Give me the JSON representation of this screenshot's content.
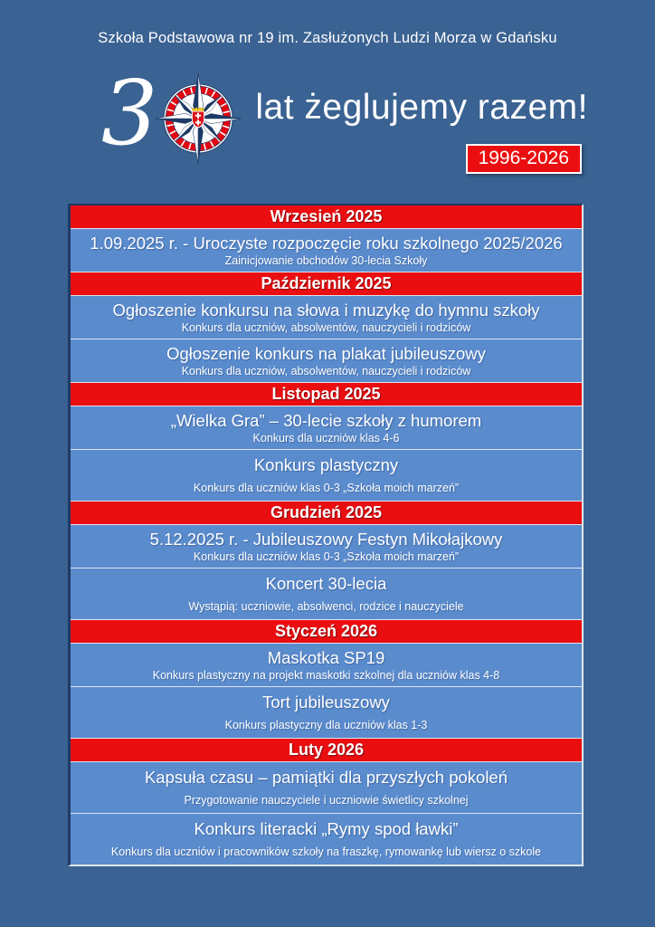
{
  "header": {
    "school_name": "Szkoła Podstawowa nr 19 im. Zasłużonych Ludzi Morza w Gdańsku",
    "anniversary_digit": "3",
    "slogan": "lat żeglujemy razem!",
    "years": "1996-2026"
  },
  "colors": {
    "page_bg": "#3A6292",
    "month_red": "#EA0E11",
    "row_blue": "#5A8BCD",
    "border_navy": "#1E3A66",
    "separator": "#DFE6F0"
  },
  "icons": {
    "compass_rose": "compass-rose-icon"
  },
  "schedule": [
    {
      "type": "month",
      "label": "Wrzesień 2025"
    },
    {
      "type": "event",
      "title": "1.09.2025 r. - Uroczyste rozpoczęcie roku szkolnego 2025/2026",
      "subtitle": "Zainicjowanie obchodów 30-lecia Szkoły",
      "spaced": false
    },
    {
      "type": "month",
      "label": "Październik 2025"
    },
    {
      "type": "event",
      "title": "Ogłoszenie konkursu na słowa i muzykę do hymnu szkoły",
      "subtitle": "Konkurs dla uczniów, absolwentów, nauczycieli i rodziców",
      "spaced": false
    },
    {
      "type": "event",
      "title": "Ogłoszenie konkurs na plakat jubileuszowy",
      "subtitle": "Konkurs dla uczniów, absolwentów, nauczycieli i rodziców",
      "spaced": false
    },
    {
      "type": "month",
      "label": "Listopad 2025"
    },
    {
      "type": "event",
      "title": "„Wielka Gra” – 30-lecie szkoły z humorem",
      "subtitle": "Konkurs dla uczniów klas 4-6",
      "spaced": false
    },
    {
      "type": "event",
      "title": "Konkurs plastyczny",
      "subtitle": "Konkurs dla uczniów klas 0-3 „Szkoła moich marzeń”",
      "spaced": true
    },
    {
      "type": "month",
      "label": "Grudzień 2025"
    },
    {
      "type": "event",
      "title": "5.12.2025 r. - Jubileuszowy Festyn Mikołajkowy",
      "subtitle": "Konkurs dla uczniów klas 0-3 „Szkoła moich marzeń”",
      "spaced": false
    },
    {
      "type": "event",
      "title": "Koncert 30-lecia",
      "subtitle": "Wystąpią: uczniowie, absolwenci, rodzice i nauczyciele",
      "spaced": true
    },
    {
      "type": "month",
      "label": "Styczeń 2026"
    },
    {
      "type": "event",
      "title": "Maskotka SP19",
      "subtitle": "Konkurs plastyczny na projekt maskotki szkolnej dla uczniów klas 4-8",
      "spaced": false
    },
    {
      "type": "event",
      "title": "Tort jubileuszowy",
      "subtitle": "Konkurs plastyczny dla uczniów klas 1-3",
      "spaced": true
    },
    {
      "type": "month",
      "label": "Luty 2026"
    },
    {
      "type": "event",
      "title": "Kapsuła czasu – pamiątki dla przyszłych pokoleń",
      "subtitle": "Przygotowanie nauczyciele i uczniowie świetlicy szkolnej",
      "spaced": true
    },
    {
      "type": "event",
      "title": "Konkurs literacki „Rymy spod ławki”",
      "subtitle": "Konkurs dla uczniów i pracowników szkoły na fraszkę, rymowankę lub wiersz o szkole",
      "spaced": true
    }
  ]
}
